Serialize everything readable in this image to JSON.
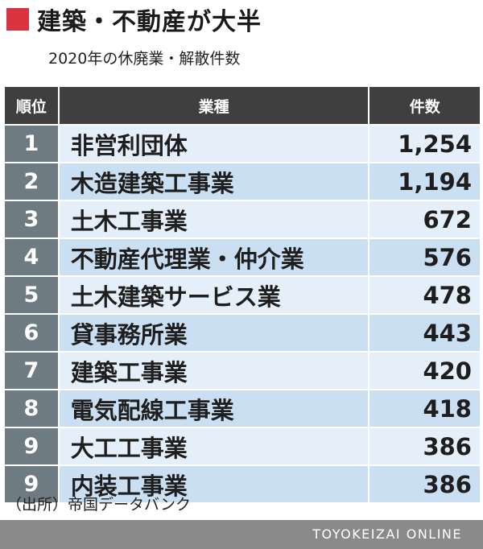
{
  "header": {
    "title": "建築・不動産が大半",
    "subtitle": "2020年の休廃業・解散件数"
  },
  "table": {
    "col_rank": "順位",
    "col_industry": "業種",
    "col_count": "件数"
  },
  "chart_data": {
    "type": "table",
    "title": "建築・不動産が大半",
    "subtitle": "2020年の休廃業・解散件数",
    "columns": [
      "順位",
      "業種",
      "件数"
    ],
    "rows": [
      {
        "rank": "1",
        "industry": "非営利団体",
        "count": "1,254"
      },
      {
        "rank": "2",
        "industry": "木造建築工事業",
        "count": "1,194"
      },
      {
        "rank": "3",
        "industry": "土木工事業",
        "count": "672"
      },
      {
        "rank": "4",
        "industry": "不動産代理業・仲介業",
        "count": "576"
      },
      {
        "rank": "5",
        "industry": "土木建築サービス業",
        "count": "478"
      },
      {
        "rank": "6",
        "industry": "貸事務所業",
        "count": "443"
      },
      {
        "rank": "7",
        "industry": "建築工事業",
        "count": "420"
      },
      {
        "rank": "8",
        "industry": "電気配線工事業",
        "count": "418"
      },
      {
        "rank": "9",
        "industry": "大工工事業",
        "count": "386"
      },
      {
        "rank": "9",
        "industry": "内装工事業",
        "count": "386"
      }
    ]
  },
  "source": "（出所）帝国データバンク",
  "footer": {
    "brand": "TOYOKEIZAI ONLINE",
    "bar_color": "#8a8a8a"
  },
  "colors": {
    "accent": "#d9333f",
    "header_bg": "#3f3f3f",
    "rank_bg": "#6f7b82",
    "row_light": "#e4eff9",
    "row_dark": "#cadff2"
  }
}
